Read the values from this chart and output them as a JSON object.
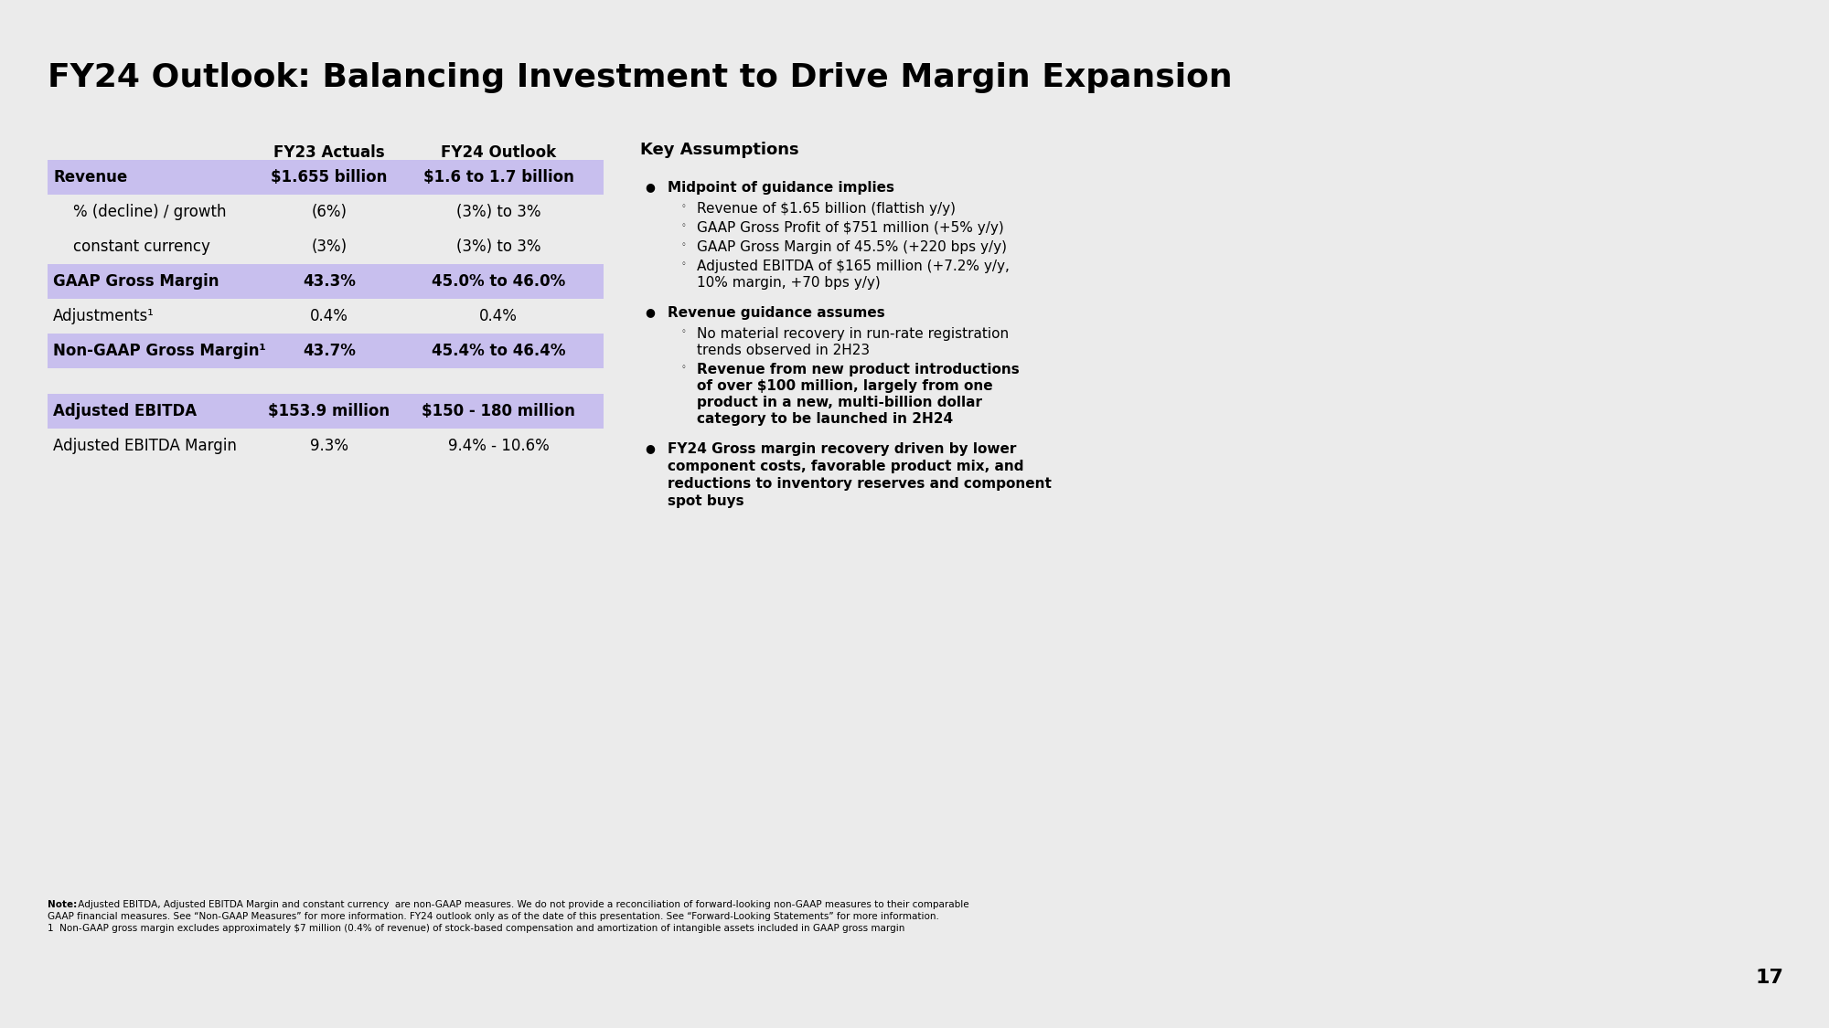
{
  "title": "FY24 Outlook: Balancing Investment to Drive Margin Expansion",
  "title_fontsize": 26,
  "background_color": "#ebebeb",
  "table_row_highlight_color": "#c8bfee",
  "slide_number": "17",
  "table1": {
    "col_header_fy23": "FY23 Actuals",
    "col_header_fy24": "FY24 Outlook",
    "rows": [
      {
        "label": "Revenue",
        "fy23": "$1.655 billion",
        "fy24": "$1.6 to 1.7 billion",
        "bold": true,
        "highlight": true,
        "indent": false
      },
      {
        "label": "% (decline) / growth",
        "fy23": "(6%)",
        "fy24": "(3%) to 3%",
        "bold": false,
        "highlight": false,
        "indent": true
      },
      {
        "label": "constant currency",
        "fy23": "(3%)",
        "fy24": "(3%) to 3%",
        "bold": false,
        "highlight": false,
        "indent": true
      },
      {
        "label": "GAAP Gross Margin",
        "fy23": "43.3%",
        "fy24": "45.0% to 46.0%",
        "bold": true,
        "highlight": true,
        "indent": false
      },
      {
        "label": "Adjustments¹",
        "fy23": "0.4%",
        "fy24": "0.4%",
        "bold": false,
        "highlight": false,
        "indent": false
      },
      {
        "label": "Non-GAAP Gross Margin¹",
        "fy23": "43.7%",
        "fy24": "45.4% to 46.4%",
        "bold": true,
        "highlight": true,
        "indent": false
      }
    ]
  },
  "table2": {
    "rows": [
      {
        "label": "Adjusted EBITDA",
        "fy23": "$153.9 million",
        "fy24": "$150 - 180 million",
        "bold": true,
        "highlight": true
      },
      {
        "label": "Adjusted EBITDA Margin",
        "fy23": "9.3%",
        "fy24": "9.4% - 10.6%",
        "bold": false,
        "highlight": false
      }
    ]
  },
  "right_section": {
    "title": "Key Assumptions",
    "bullets": [
      {
        "text": "Midpoint of guidance implies",
        "bold": true,
        "sub_bullets": [
          {
            "text": "Revenue of $1.65 billion (flattish y/y)",
            "bold": false
          },
          {
            "text": "GAAP Gross Profit of $751 million (+5% y/y)",
            "bold": false
          },
          {
            "text": "GAAP Gross Margin of 45.5% (+220 bps y/y)",
            "bold": false
          },
          {
            "text": "Adjusted EBITDA of $165 million (+7.2% y/y,\n10% margin, +70 bps y/y)",
            "bold": false
          }
        ]
      },
      {
        "text": "Revenue guidance assumes",
        "bold": true,
        "sub_bullets": [
          {
            "text": "No material recovery in run-rate registration\ntrends observed in 2H23",
            "bold": false
          },
          {
            "text": "Revenue from new product introductions\nof over $100 million, largely from one\nproduct in a new, multi-billion dollar\ncategory to be launched in 2H24",
            "bold": true
          }
        ]
      },
      {
        "text": "FY24 Gross margin recovery driven by lower\ncomponent costs, favorable product mix, and\nreductions to inventory reserves and component\nspot buys",
        "bold": true,
        "sub_bullets": []
      }
    ]
  },
  "footnote_bold": "Note:",
  "footnote": " Adjusted EBITDA, Adjusted EBITDA Margin and constant currency  are non-GAAP measures. We do not provide a reconciliation of forward-looking non-GAAP measures to their comparable\nGAAP financial measures. See “Non-GAAP Measures” for more information. FY24 outlook only as of the date of this presentation. See “Forward-Looking Statements” for more information.\n1  Non-GAAP gross margin excludes approximately $7 million (0.4% of revenue) of stock-based compensation and amortization of intangible assets included in GAAP gross margin"
}
